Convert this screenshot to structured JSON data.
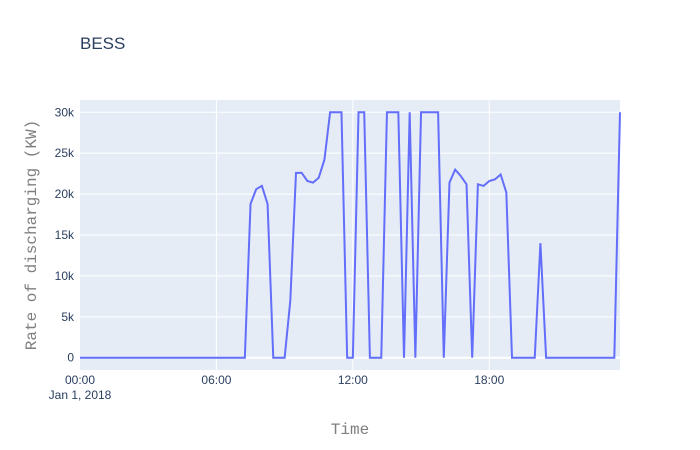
{
  "chart_data": {
    "type": "line",
    "title": "BESS",
    "xlabel": "Time",
    "ylabel": "Rate of discharging (KW)",
    "x_tick_labels": [
      "00:00",
      "06:00",
      "12:00",
      "18:00"
    ],
    "x_tick_sublabel": "Jan 1, 2018",
    "y_tick_labels": [
      "0",
      "5k",
      "10k",
      "15k",
      "20k",
      "25k",
      "30k"
    ],
    "xlim": [
      0,
      23.75
    ],
    "ylim": [
      -1500,
      31500
    ],
    "grid": true,
    "line_color": "#636efa",
    "plot_bg": "#e5ecf6",
    "series": [
      {
        "x": [
          0,
          7.25,
          7.5,
          7.75,
          8.0,
          8.25,
          8.5,
          8.75,
          9.0,
          9.25,
          9.5,
          9.75,
          10.0,
          10.25,
          10.5,
          10.75,
          11.0,
          11.25,
          11.5,
          11.75,
          12.0,
          12.25,
          12.5,
          12.75,
          13.0,
          13.25,
          13.5,
          13.75,
          14.0,
          14.25,
          14.5,
          14.75,
          15.0,
          15.25,
          15.5,
          15.75,
          16.0,
          16.25,
          16.5,
          16.75,
          17.0,
          17.25,
          17.5,
          17.75,
          18.0,
          18.25,
          18.5,
          18.75,
          19.0,
          19.25,
          19.5,
          19.75,
          20.0,
          20.25,
          20.5,
          20.75,
          21.0,
          21.25,
          21.5,
          21.75,
          22.0,
          22.25,
          22.5,
          22.75,
          23.0,
          23.25,
          23.5,
          23.75
        ],
        "y": [
          0,
          0,
          18800,
          20600,
          21000,
          18800,
          0,
          0,
          0,
          7000,
          22600,
          22600,
          21600,
          21400,
          22000,
          24200,
          30000,
          30000,
          30000,
          0,
          0,
          30000,
          30000,
          0,
          0,
          0,
          30000,
          30000,
          30000,
          0,
          30000,
          0,
          30000,
          30000,
          30000,
          30000,
          0,
          21400,
          23000,
          22200,
          21200,
          0,
          21200,
          21000,
          21600,
          21800,
          22400,
          20200,
          0,
          0,
          0,
          0,
          0,
          14000,
          0,
          0,
          0,
          0,
          0,
          0,
          0,
          0,
          0,
          0,
          0,
          0,
          0,
          30000
        ]
      }
    ]
  }
}
